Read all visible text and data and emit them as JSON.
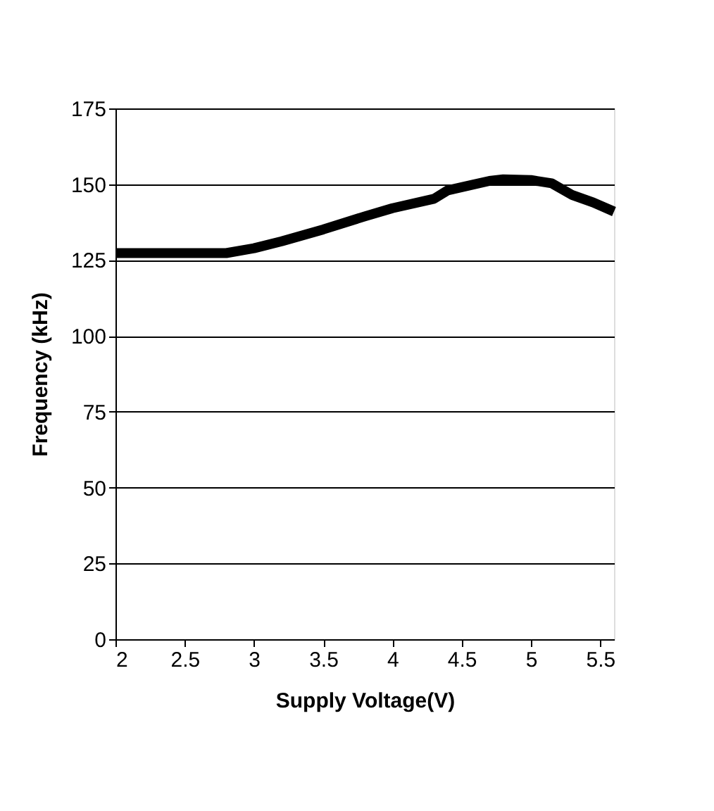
{
  "chart_data": {
    "type": "line",
    "xlabel": "Supply Voltage(V)",
    "ylabel": "Frequency (kHz)",
    "x": [
      2,
      2.5,
      2.8,
      3.0,
      3.2,
      3.5,
      3.8,
      4.0,
      4.3,
      4.4,
      4.7,
      4.8,
      5.0,
      5.15,
      5.3,
      5.45,
      5.6
    ],
    "series": [
      {
        "color": "#000000",
        "values": [
          127.3,
          127.3,
          127.3,
          128.9,
          131.2,
          135.1,
          139.4,
          142.1,
          145.2,
          148,
          151.1,
          151.6,
          151.4,
          150.3,
          146.4,
          144,
          141
        ]
      }
    ],
    "xlim": [
      2,
      5.6
    ],
    "xticks": [
      2,
      2.5,
      3,
      3.5,
      4,
      4.5,
      5,
      5.5
    ],
    "ylim": [
      0,
      175
    ],
    "yticks": [
      0,
      25,
      50,
      75,
      100,
      125,
      150,
      175
    ],
    "grid": "y",
    "marker": "none",
    "line_style": "solid"
  }
}
